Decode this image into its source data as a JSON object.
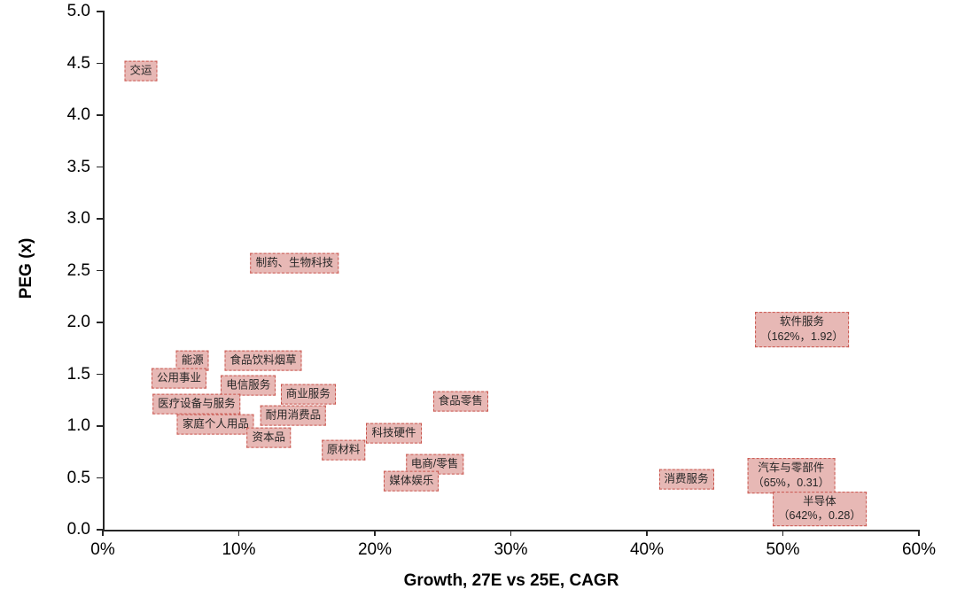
{
  "chart_data": {
    "type": "scatter",
    "title": "",
    "xlabel": "Growth, 27E vs 25E, CAGR",
    "ylabel": "PEG (x)",
    "xlim": [
      0,
      60
    ],
    "ylim": [
      0,
      5
    ],
    "x_tick_step": 10,
    "y_tick_step": 0.5,
    "x_ticks": [
      "0%",
      "10%",
      "20%",
      "30%",
      "40%",
      "50%",
      "60%"
    ],
    "y_ticks": [
      "0.0",
      "0.5",
      "1.0",
      "1.5",
      "2.0",
      "2.5",
      "3.0",
      "3.5",
      "4.0",
      "4.5",
      "5.0"
    ],
    "grid": false,
    "legend": "none",
    "points": [
      {
        "label": "交运",
        "x": 2.8,
        "y": 4.43
      },
      {
        "label": "制药、生物科技",
        "x": 14.1,
        "y": 2.57
      },
      {
        "label": "能源",
        "x": 6.6,
        "y": 1.63
      },
      {
        "label": "食品饮料烟草",
        "x": 11.8,
        "y": 1.63
      },
      {
        "label": "公用事业",
        "x": 5.6,
        "y": 1.46
      },
      {
        "label": "电信服务",
        "x": 10.7,
        "y": 1.39
      },
      {
        "label": "商业服务",
        "x": 15.1,
        "y": 1.31
      },
      {
        "label": "医疗设备与服务",
        "x": 6.9,
        "y": 1.21
      },
      {
        "label": "耐用消费品",
        "x": 14.0,
        "y": 1.1
      },
      {
        "label": "家庭个人用品",
        "x": 8.3,
        "y": 1.02
      },
      {
        "label": "资本品",
        "x": 12.2,
        "y": 0.89
      },
      {
        "label": "原材料",
        "x": 17.7,
        "y": 0.77
      },
      {
        "label": "食品零售",
        "x": 26.3,
        "y": 1.24
      },
      {
        "label": "科技硬件",
        "x": 21.4,
        "y": 0.93
      },
      {
        "label": "电商/零售",
        "x": 24.4,
        "y": 0.63
      },
      {
        "label": "媒体娱乐",
        "x": 22.7,
        "y": 0.47
      },
      {
        "label": "消费服务",
        "x": 42.9,
        "y": 0.49
      },
      {
        "label": "软件服务",
        "sublabel": "（162%，1.92）",
        "x": 51.4,
        "y": 1.93
      },
      {
        "label": "汽车与零部件",
        "sublabel": "（65%，0.31）",
        "x": 50.6,
        "y": 0.52
      },
      {
        "label": "半导体",
        "sublabel": "（642%，0.28）",
        "x": 52.7,
        "y": 0.2
      }
    ]
  },
  "style": {
    "label_fill": "#e7b8b5",
    "label_border": "#c9544c",
    "axis_color": "#262626",
    "text_color": "#000000"
  }
}
